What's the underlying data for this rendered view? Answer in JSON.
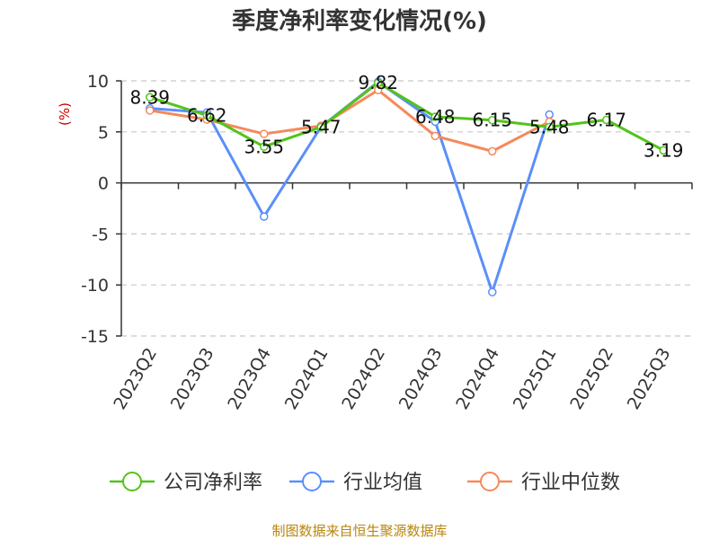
{
  "chart_data": {
    "type": "line",
    "title": "季度净利率变化情况(%)",
    "ylabel": "(%)",
    "xlabel": "",
    "ylim": [
      -15,
      10
    ],
    "yticks": [
      10,
      5,
      0,
      -5,
      -10,
      -15
    ],
    "categories": [
      "2023Q2",
      "2023Q3",
      "2023Q4",
      "2024Q1",
      "2024Q2",
      "2024Q3",
      "2024Q4",
      "2025Q1",
      "2025Q2",
      "2025Q3"
    ],
    "series": [
      {
        "name": "公司净利率",
        "color": "#52c41a",
        "values": [
          8.39,
          6.62,
          3.55,
          5.47,
          9.82,
          6.48,
          6.15,
          5.48,
          6.17,
          3.19
        ],
        "labels": [
          "8.39",
          "6.62",
          "3.55",
          "5.47",
          "9.82",
          "6.48",
          "6.15",
          "5.48",
          "6.17",
          "3.19"
        ]
      },
      {
        "name": "行业均值",
        "color": "#5b8ff9",
        "values": [
          7.3,
          6.9,
          -3.3,
          5.5,
          9.9,
          6.0,
          -10.7,
          6.7,
          null,
          null
        ]
      },
      {
        "name": "行业中位数",
        "color": "#f5895b",
        "values": [
          7.1,
          6.2,
          4.8,
          5.6,
          9.1,
          4.6,
          3.1,
          6.0,
          null,
          null
        ]
      }
    ],
    "grid": true,
    "legend_position": "bottom"
  },
  "source": "制图数据来自恒生聚源数据库"
}
